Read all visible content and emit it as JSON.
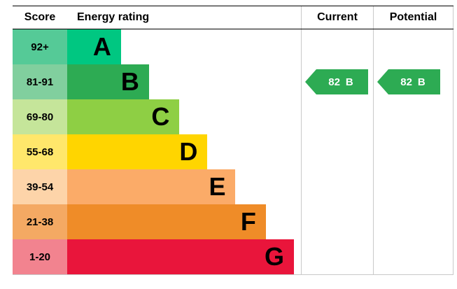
{
  "header": {
    "score": "Score",
    "rating": "Energy rating",
    "current": "Current",
    "potential": "Potential"
  },
  "chart_data": {
    "type": "bar",
    "title": "Energy rating",
    "columns": [
      "Score",
      "Energy rating",
      "Current",
      "Potential"
    ],
    "bands": [
      {
        "score": "92+",
        "letter": "A",
        "color": "#00c781",
        "tint": "#55ca97",
        "bar_width_pct": 23
      },
      {
        "score": "81-91",
        "letter": "B",
        "color": "#2dab53",
        "tint": "#81cf9e",
        "bar_width_pct": 35
      },
      {
        "score": "69-80",
        "letter": "C",
        "color": "#8ecf44",
        "tint": "#c5e59a",
        "bar_width_pct": 48
      },
      {
        "score": "55-68",
        "letter": "D",
        "color": "#ffd500",
        "tint": "#ffe76b",
        "bar_width_pct": 60
      },
      {
        "score": "39-54",
        "letter": "E",
        "color": "#fbab68",
        "tint": "#fdd4a9",
        "bar_width_pct": 72
      },
      {
        "score": "21-38",
        "letter": "F",
        "color": "#ef8c28",
        "tint": "#f4a963",
        "bar_width_pct": 85
      },
      {
        "score": "1-20",
        "letter": "G",
        "color": "#e9153b",
        "tint": "#f2838f",
        "bar_width_pct": 97
      }
    ],
    "current": {
      "value": 82,
      "band": "B",
      "label": "82 B",
      "color": "#2dab53",
      "band_index": 1
    },
    "potential": {
      "value": 82,
      "band": "B",
      "label": "82 B",
      "color": "#2dab53",
      "band_index": 1
    }
  }
}
